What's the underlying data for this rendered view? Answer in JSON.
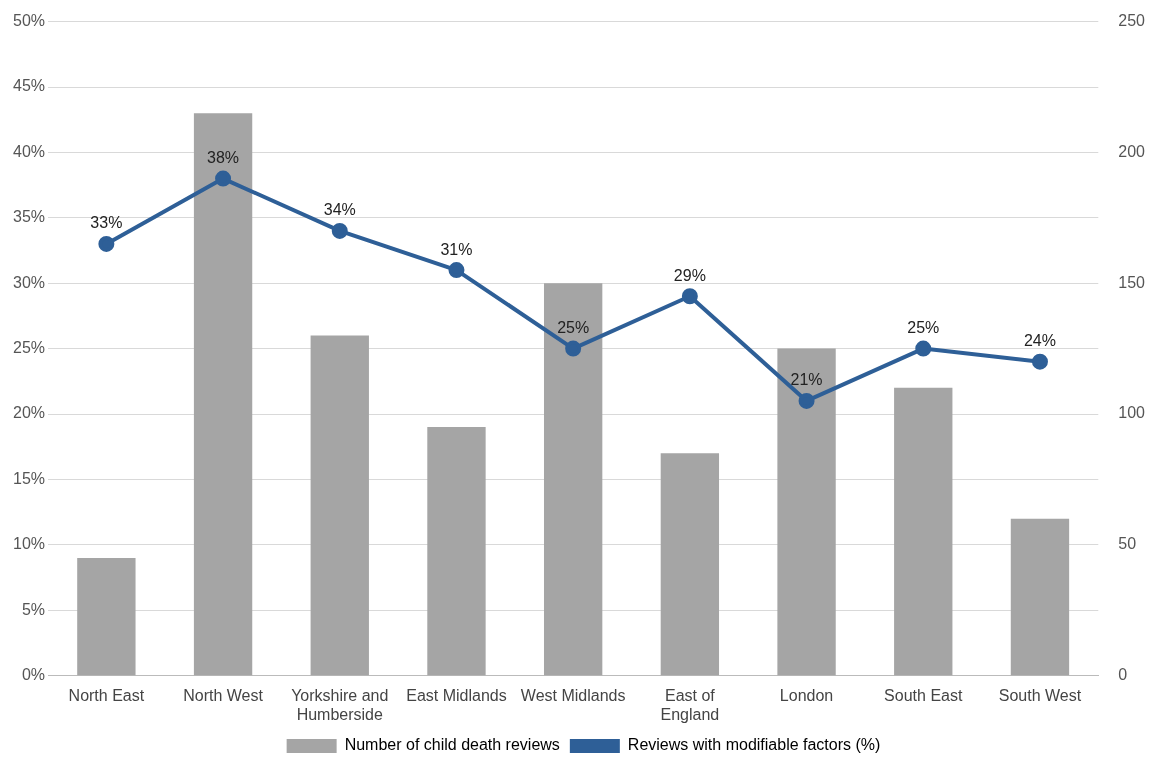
{
  "chart_data": {
    "type": "bar",
    "categories": [
      "North East",
      "North West",
      "Yorkshire and Humberside",
      "East Midlands",
      "West Midlands",
      "East of England",
      "London",
      "South East",
      "South West"
    ],
    "series": [
      {
        "name": "Number of child death reviews",
        "axis": "y2",
        "color": "#a5a5a5",
        "values": [
          45,
          215,
          130,
          95,
          150,
          85,
          125,
          110,
          60
        ]
      },
      {
        "name": "Reviews with modifiable factors (%)",
        "type": "line",
        "axis": "y",
        "color": "#2e5f97",
        "marker": "circle",
        "values": [
          33,
          38,
          34,
          31,
          25,
          29,
          21,
          25,
          24
        ],
        "value_labels": [
          "33%",
          "38%",
          "34%",
          "31%",
          "25%",
          "29%",
          "21%",
          "25%",
          "24%"
        ]
      }
    ],
    "ylim": [
      0,
      50
    ],
    "yticks": [
      {
        "value": 0,
        "label": "0%"
      },
      {
        "value": 5,
        "label": "5%"
      },
      {
        "value": 10,
        "label": "10%"
      },
      {
        "value": 15,
        "label": "15%"
      },
      {
        "value": 20,
        "label": "20%"
      },
      {
        "value": 25,
        "label": "25%"
      },
      {
        "value": 30,
        "label": "30%"
      },
      {
        "value": 35,
        "label": "35%"
      },
      {
        "value": 40,
        "label": "40%"
      },
      {
        "value": 45,
        "label": "45%"
      },
      {
        "value": 50,
        "label": "50%"
      }
    ],
    "y2lim": [
      0,
      250
    ],
    "y2ticks": [
      0,
      50,
      100,
      150,
      200,
      250
    ],
    "grid": "y",
    "legend": "bottom"
  }
}
